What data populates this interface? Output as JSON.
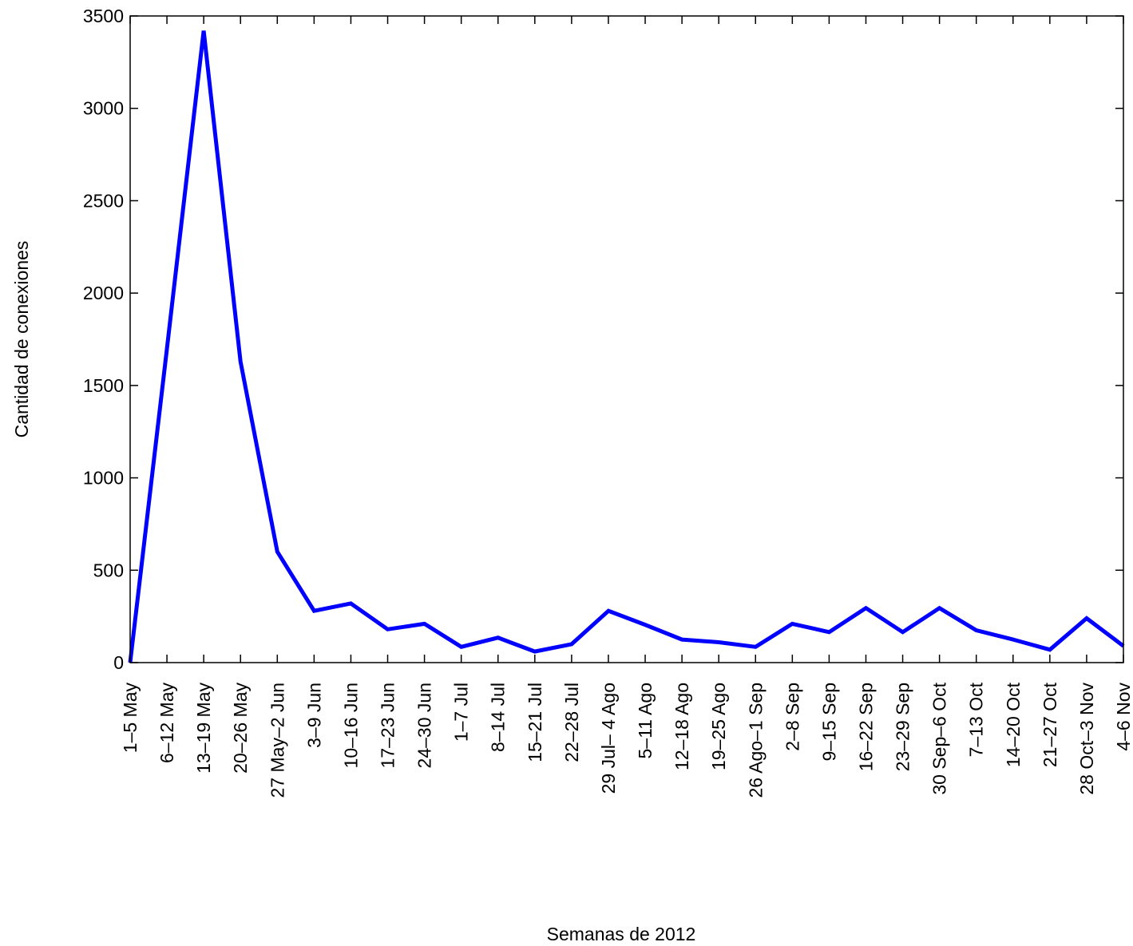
{
  "chart_data": {
    "type": "line",
    "title": "",
    "xlabel": "Semanas de 2012",
    "ylabel": "Cantidad de conexiones",
    "ylim": [
      0,
      3500
    ],
    "yticks": [
      0,
      500,
      1000,
      1500,
      2000,
      2500,
      3000,
      3500
    ],
    "grid": false,
    "legend": "none",
    "categories": [
      "1–5 May",
      "6–12 May",
      "13–19 May",
      "20–26 May",
      "27 May–2 Jun",
      "3–9 Jun",
      "10–16 Jun",
      "17–23 Jun",
      "24–30 Jun",
      "1–7 Jul",
      "8–14 Jul",
      "15–21 Jul",
      "22–28 Jul",
      "29 Jul– 4 Ago",
      "5–11 Ago",
      "12–18 Ago",
      "19–25 Ago",
      "26 Ago–1 Sep",
      "2–8 Sep",
      "9–15 Sep",
      "16–22 Sep",
      "23–29 Sep",
      "30 Sep–6 Oct",
      "7–13 Oct",
      "14–20 Oct",
      "21–27 Oct",
      "28 Oct–3 Nov",
      "4–6 Nov"
    ],
    "series": [
      {
        "color": "#0000ff",
        "values": [
          0,
          1700,
          3420,
          1630,
          600,
          280,
          320,
          180,
          210,
          85,
          135,
          60,
          100,
          280,
          205,
          125,
          110,
          85,
          210,
          165,
          295,
          165,
          295,
          175,
          125,
          70,
          240,
          90
        ]
      }
    ]
  }
}
